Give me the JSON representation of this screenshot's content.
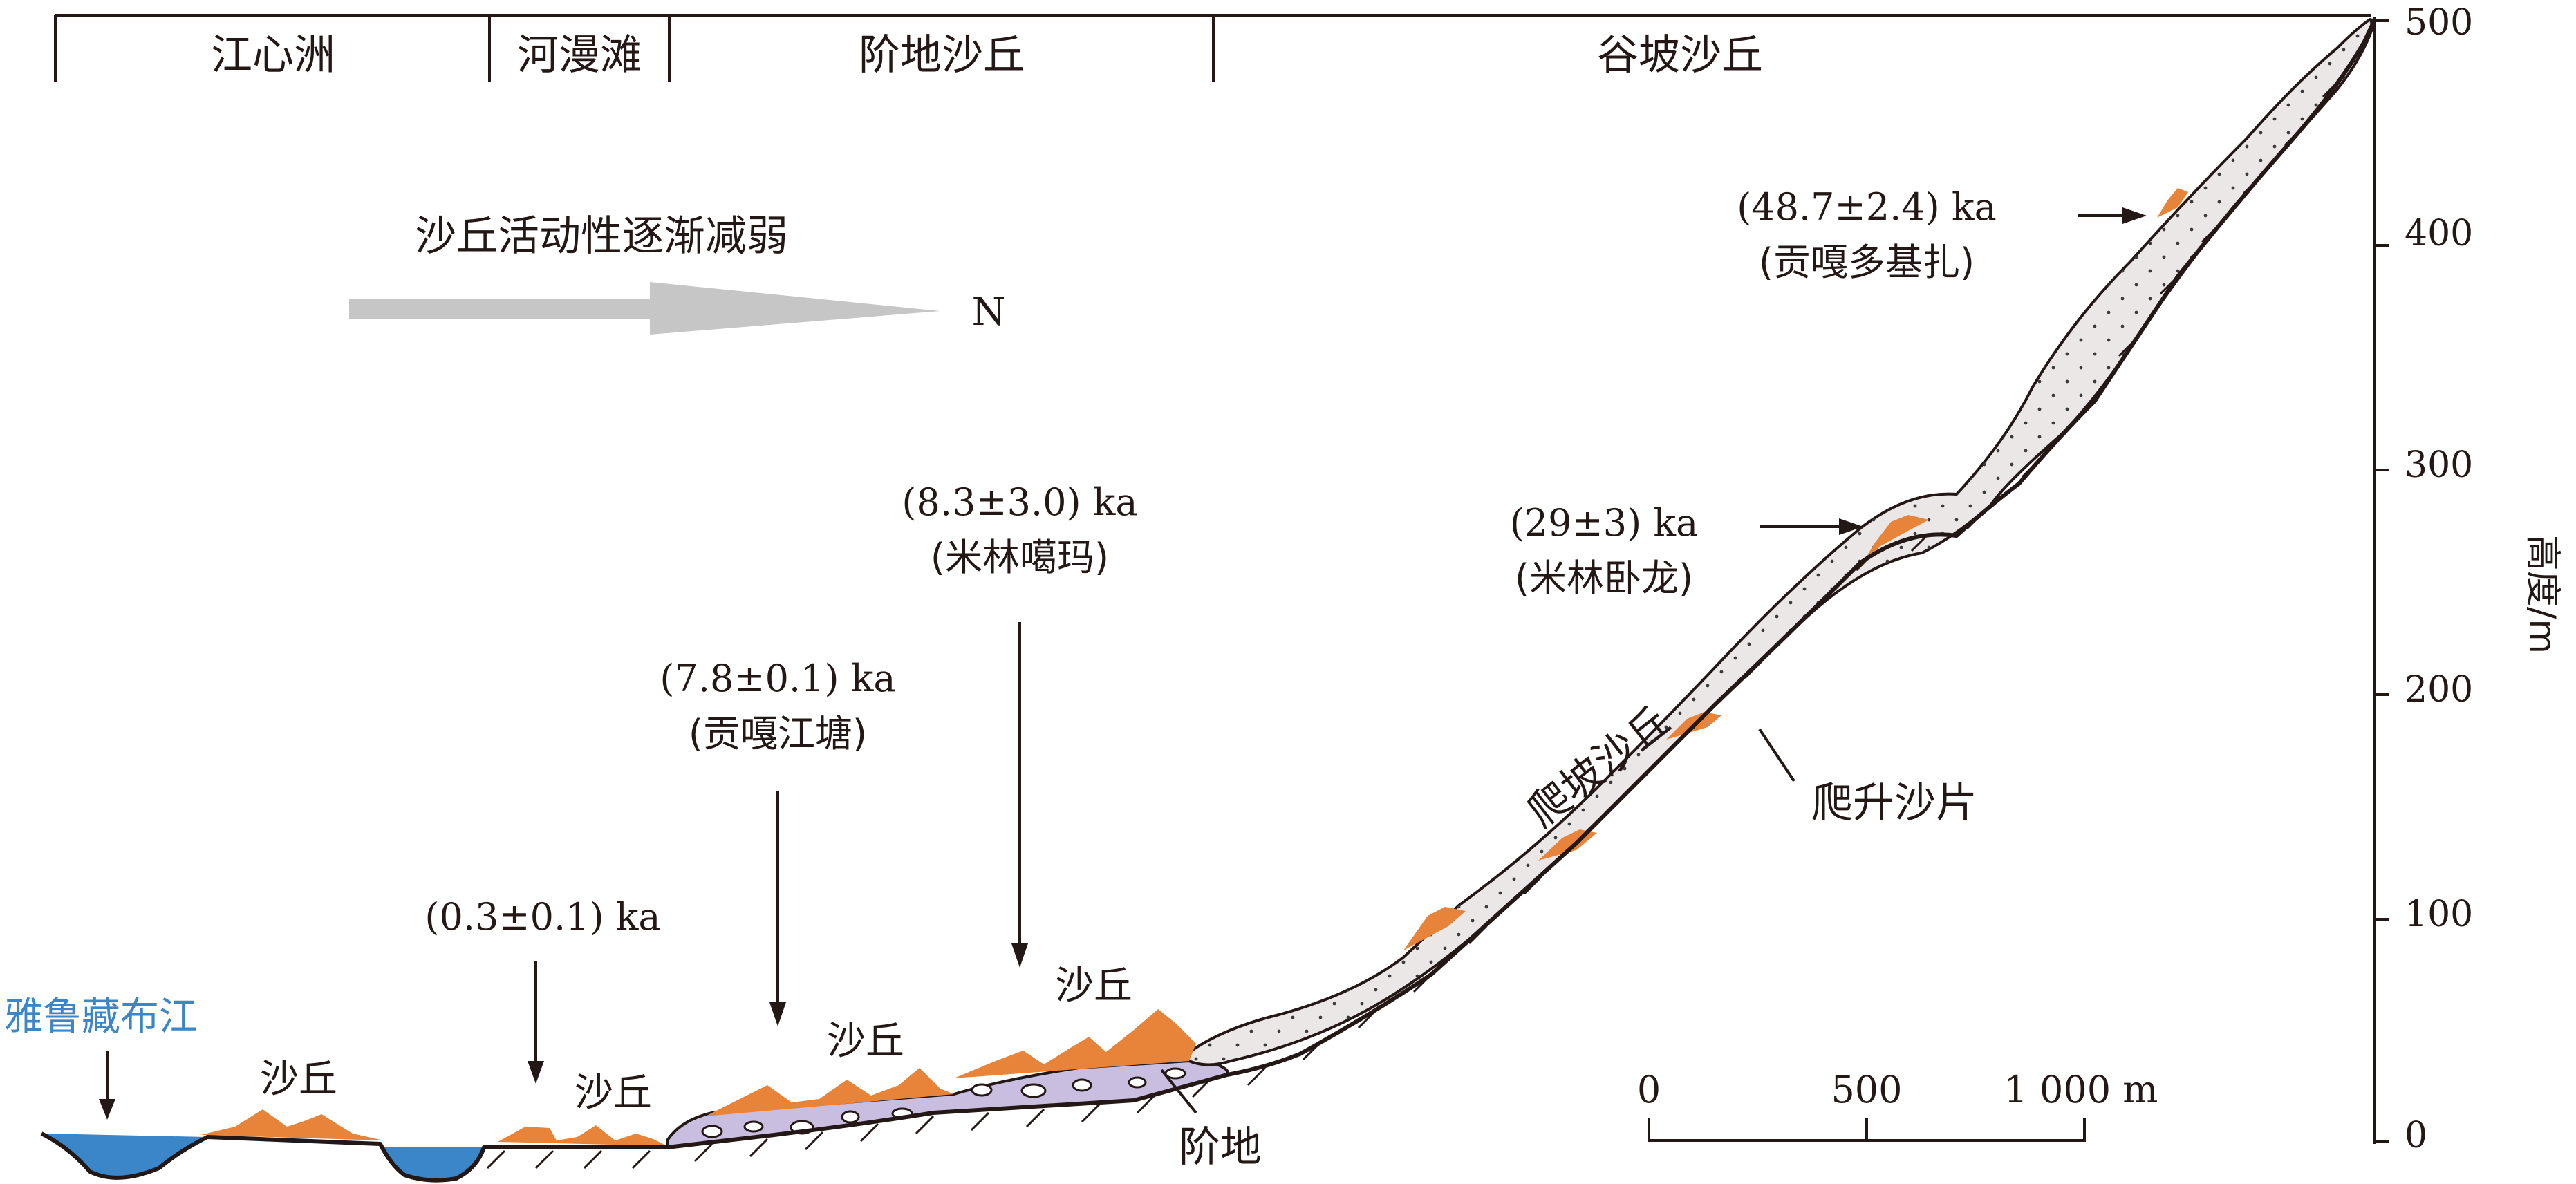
{
  "zones": [
    {
      "label": "江心洲"
    },
    {
      "label": "河漫滩"
    },
    {
      "label": "阶地沙丘"
    },
    {
      "label": "谷坡沙丘"
    }
  ],
  "trend": {
    "text": "沙丘活动性逐渐减弱",
    "direction": "N"
  },
  "river_label": "雅鲁藏布江",
  "dune_label": "沙丘",
  "terrace_label": "阶地",
  "climbing_dune_label": "爬坡沙丘",
  "climbing_sand_sheet_label": "爬升沙片",
  "ages": [
    {
      "age": "(0.3±0.1) ka",
      "site": ""
    },
    {
      "age": "(7.8±0.1) ka",
      "site": "(贡嘎江塘)"
    },
    {
      "age": "(8.3±3.0) ka",
      "site": "(米林噶玛)"
    },
    {
      "age": "(29±3) ka",
      "site": "(米林卧龙)"
    },
    {
      "age": "(48.7±2.4) ka",
      "site": "(贡嘎多基扎)"
    }
  ],
  "axis": {
    "label": "高度/m",
    "ticks": [
      "500",
      "400",
      "300",
      "200",
      "100",
      "0"
    ]
  },
  "scale_bar": {
    "ticks": [
      "0",
      "500",
      "1 000 m"
    ]
  },
  "colors": {
    "dune": "#e8833a",
    "river": "#3a86c8",
    "terrace": "#c9bde0",
    "sand_sheet": "#ebe7e7",
    "line": "#231815",
    "arrow": "#c6c6c6"
  }
}
